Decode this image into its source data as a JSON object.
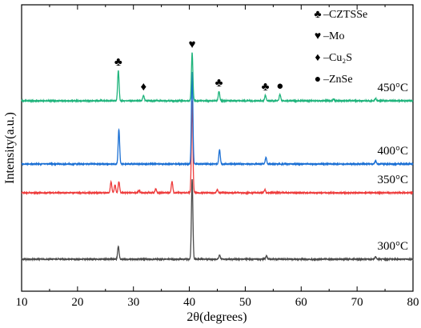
{
  "chart_data": {
    "type": "line",
    "title": "",
    "xlabel": "2θ(degrees)",
    "ylabel": "Intensity(a.u.)",
    "xlim": [
      10,
      80
    ],
    "xticks": [
      10,
      20,
      30,
      40,
      50,
      60,
      70,
      80
    ],
    "yticks_shown": false,
    "legend_position": "top-right",
    "legend": [
      {
        "symbol": "♣",
        "label": "–CZTSSe"
      },
      {
        "symbol": "♥",
        "label": "–Mo"
      },
      {
        "symbol": "♦",
        "label": "–Cu₂S"
      },
      {
        "symbol": "●",
        "label": "–ZnSe"
      }
    ],
    "series": [
      {
        "name": "300°C",
        "color": "#4a4a4a",
        "baseline": 0,
        "peaks": [
          [
            27.3,
            16
          ],
          [
            40.5,
            100
          ],
          [
            45.4,
            5
          ],
          [
            53.8,
            4
          ],
          [
            73.3,
            3
          ]
        ]
      },
      {
        "name": "350°C",
        "color": "#ee3c3c",
        "baseline": 83,
        "peaks": [
          [
            26.0,
            14
          ],
          [
            26.7,
            10
          ],
          [
            27.4,
            14
          ],
          [
            31.0,
            3
          ],
          [
            34.0,
            5
          ],
          [
            36.9,
            14
          ],
          [
            40.5,
            116
          ],
          [
            45.0,
            4
          ],
          [
            53.5,
            4
          ]
        ]
      },
      {
        "name": "400°C",
        "color": "#1a6fd4",
        "baseline": 119,
        "peaks": [
          [
            27.4,
            43
          ],
          [
            40.5,
            115
          ],
          [
            45.4,
            18
          ],
          [
            53.7,
            8
          ],
          [
            73.3,
            4
          ]
        ]
      },
      {
        "name": "450°C",
        "color": "#1fb47c",
        "baseline": 198,
        "peaks": [
          [
            27.3,
            38
          ],
          [
            31.8,
            7
          ],
          [
            40.5,
            60
          ],
          [
            45.3,
            12
          ],
          [
            53.6,
            7
          ],
          [
            56.2,
            8
          ],
          [
            65.8,
            2
          ],
          [
            73.3,
            3
          ]
        ]
      }
    ],
    "annotations": [
      {
        "symbol": "♣",
        "x": 27.3,
        "series": "450°C"
      },
      {
        "symbol": "♦",
        "x": 31.8,
        "series": "450°C"
      },
      {
        "symbol": "♥",
        "x": 40.5,
        "series": "450°C"
      },
      {
        "symbol": "♣",
        "x": 45.3,
        "series": "450°C"
      },
      {
        "symbol": "♣",
        "x": 53.6,
        "series": "450°C"
      },
      {
        "symbol": "●",
        "x": 56.2,
        "series": "450°C"
      }
    ]
  }
}
